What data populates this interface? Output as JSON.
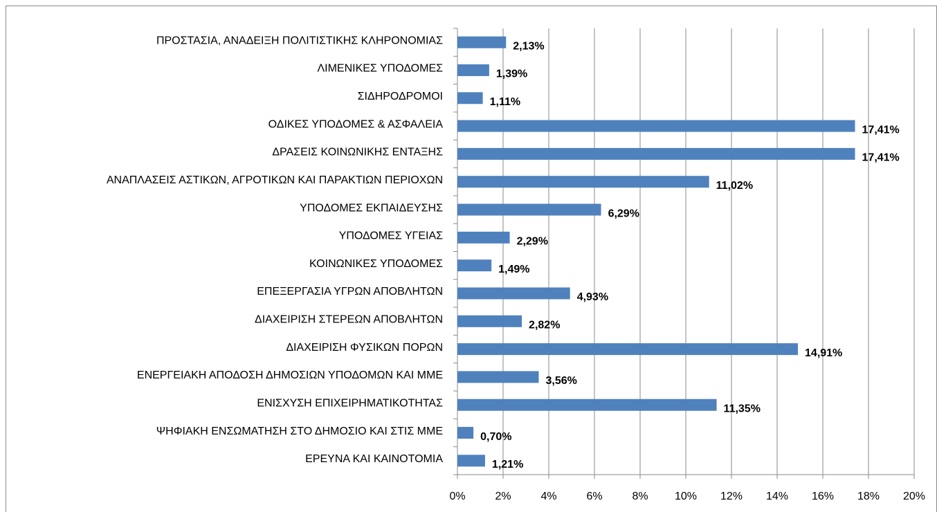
{
  "chart_data": {
    "type": "barh",
    "categories": [
      "ΠΡΟΣΤΑΣΙΑ, ΑΝΑΔΕΙΞΗ ΠΟΛΙΤΙΣΤΙΚΗΣ ΚΛΗΡΟΝΟΜΙΑΣ",
      "ΛΙΜΕΝΙΚΕΣ ΥΠΟΔΟΜΕΣ",
      "ΣΙΔΗΡΟΔΡΟΜΟΙ",
      "ΟΔΙΚΕΣ ΥΠΟΔΟΜΕΣ & ΑΣΦΑΛΕΙΑ",
      "ΔΡΑΣΕΙΣ ΚΟΙΝΩΝΙΚΗΣ ΕΝΤΑΞΗΣ",
      "ΑΝΑΠΛΑΣΕΙΣ ΑΣΤΙΚΩΝ, ΑΓΡΟΤΙΚΩΝ ΚΑΙ ΠΑΡΑΚΤΙΩΝ ΠΕΡΙΟΧΩΝ",
      "ΥΠΟΔΟΜΕΣ ΕΚΠΑΙΔΕΥΣΗΣ",
      "ΥΠΟΔΟΜΕΣ ΥΓΕΙΑΣ",
      "ΚΟΙΝΩΝΙΚΕΣ ΥΠΟΔΟΜΕΣ",
      "ΕΠΕΞΕΡΓΑΣΙΑ ΥΓΡΩΝ ΑΠΟΒΛΗΤΩΝ",
      "ΔΙΑΧΕΙΡΙΣΗ ΣΤΕΡΕΩΝ ΑΠΟΒΛΗΤΩΝ",
      "ΔΙΑΧΕΙΡΙΣΗ ΦΥΣΙΚΩΝ ΠΟΡΩΝ",
      "ΕΝΕΡΓΕΙΑΚΗ ΑΠΟΔΟΣΗ ΔΗΜΟΣΙΩΝ ΥΠΟΔΟΜΩΝ ΚΑΙ ΜΜΕ",
      "ΕΝΙΣΧΥΣΗ ΕΠΙΧΕΙΡΗΜΑΤΙΚΟΤΗΤΑΣ",
      "ΨΗΦΙΑΚΗ ΕΝΣΩΜΑΤΗΣΗ ΣΤΟ ΔΗΜΟΣΙΟ ΚΑΙ ΣΤΙΣ ΜΜΕ",
      "ΕΡΕΥΝΑ ΚΑΙ ΚΑΙΝΟΤΟΜΙΑ"
    ],
    "values": [
      2.13,
      1.39,
      1.11,
      17.41,
      17.41,
      11.02,
      6.29,
      2.29,
      1.49,
      4.93,
      2.82,
      14.91,
      3.56,
      11.35,
      0.7,
      1.21
    ],
    "value_labels": [
      "2,13%",
      "1,39%",
      "1,11%",
      "17,41%",
      "17,41%",
      "11,02%",
      "6,29%",
      "2,29%",
      "1,49%",
      "4,93%",
      "2,82%",
      "14,91%",
      "3,56%",
      "11,35%",
      "0,70%",
      "1,21%"
    ],
    "color": "#4f81bd",
    "xlim": [
      0,
      20
    ],
    "xticks": [
      {
        "value": 0,
        "label": "0%"
      },
      {
        "value": 2,
        "label": "2%"
      },
      {
        "value": 4,
        "label": "4%"
      },
      {
        "value": 6,
        "label": "6%"
      },
      {
        "value": 8,
        "label": "8%"
      },
      {
        "value": 10,
        "label": "10%"
      },
      {
        "value": 12,
        "label": "12%"
      },
      {
        "value": 14,
        "label": "14%"
      },
      {
        "value": 16,
        "label": "16%"
      },
      {
        "value": 18,
        "label": "18%"
      },
      {
        "value": 20,
        "label": "20%"
      }
    ],
    "grid": true
  }
}
